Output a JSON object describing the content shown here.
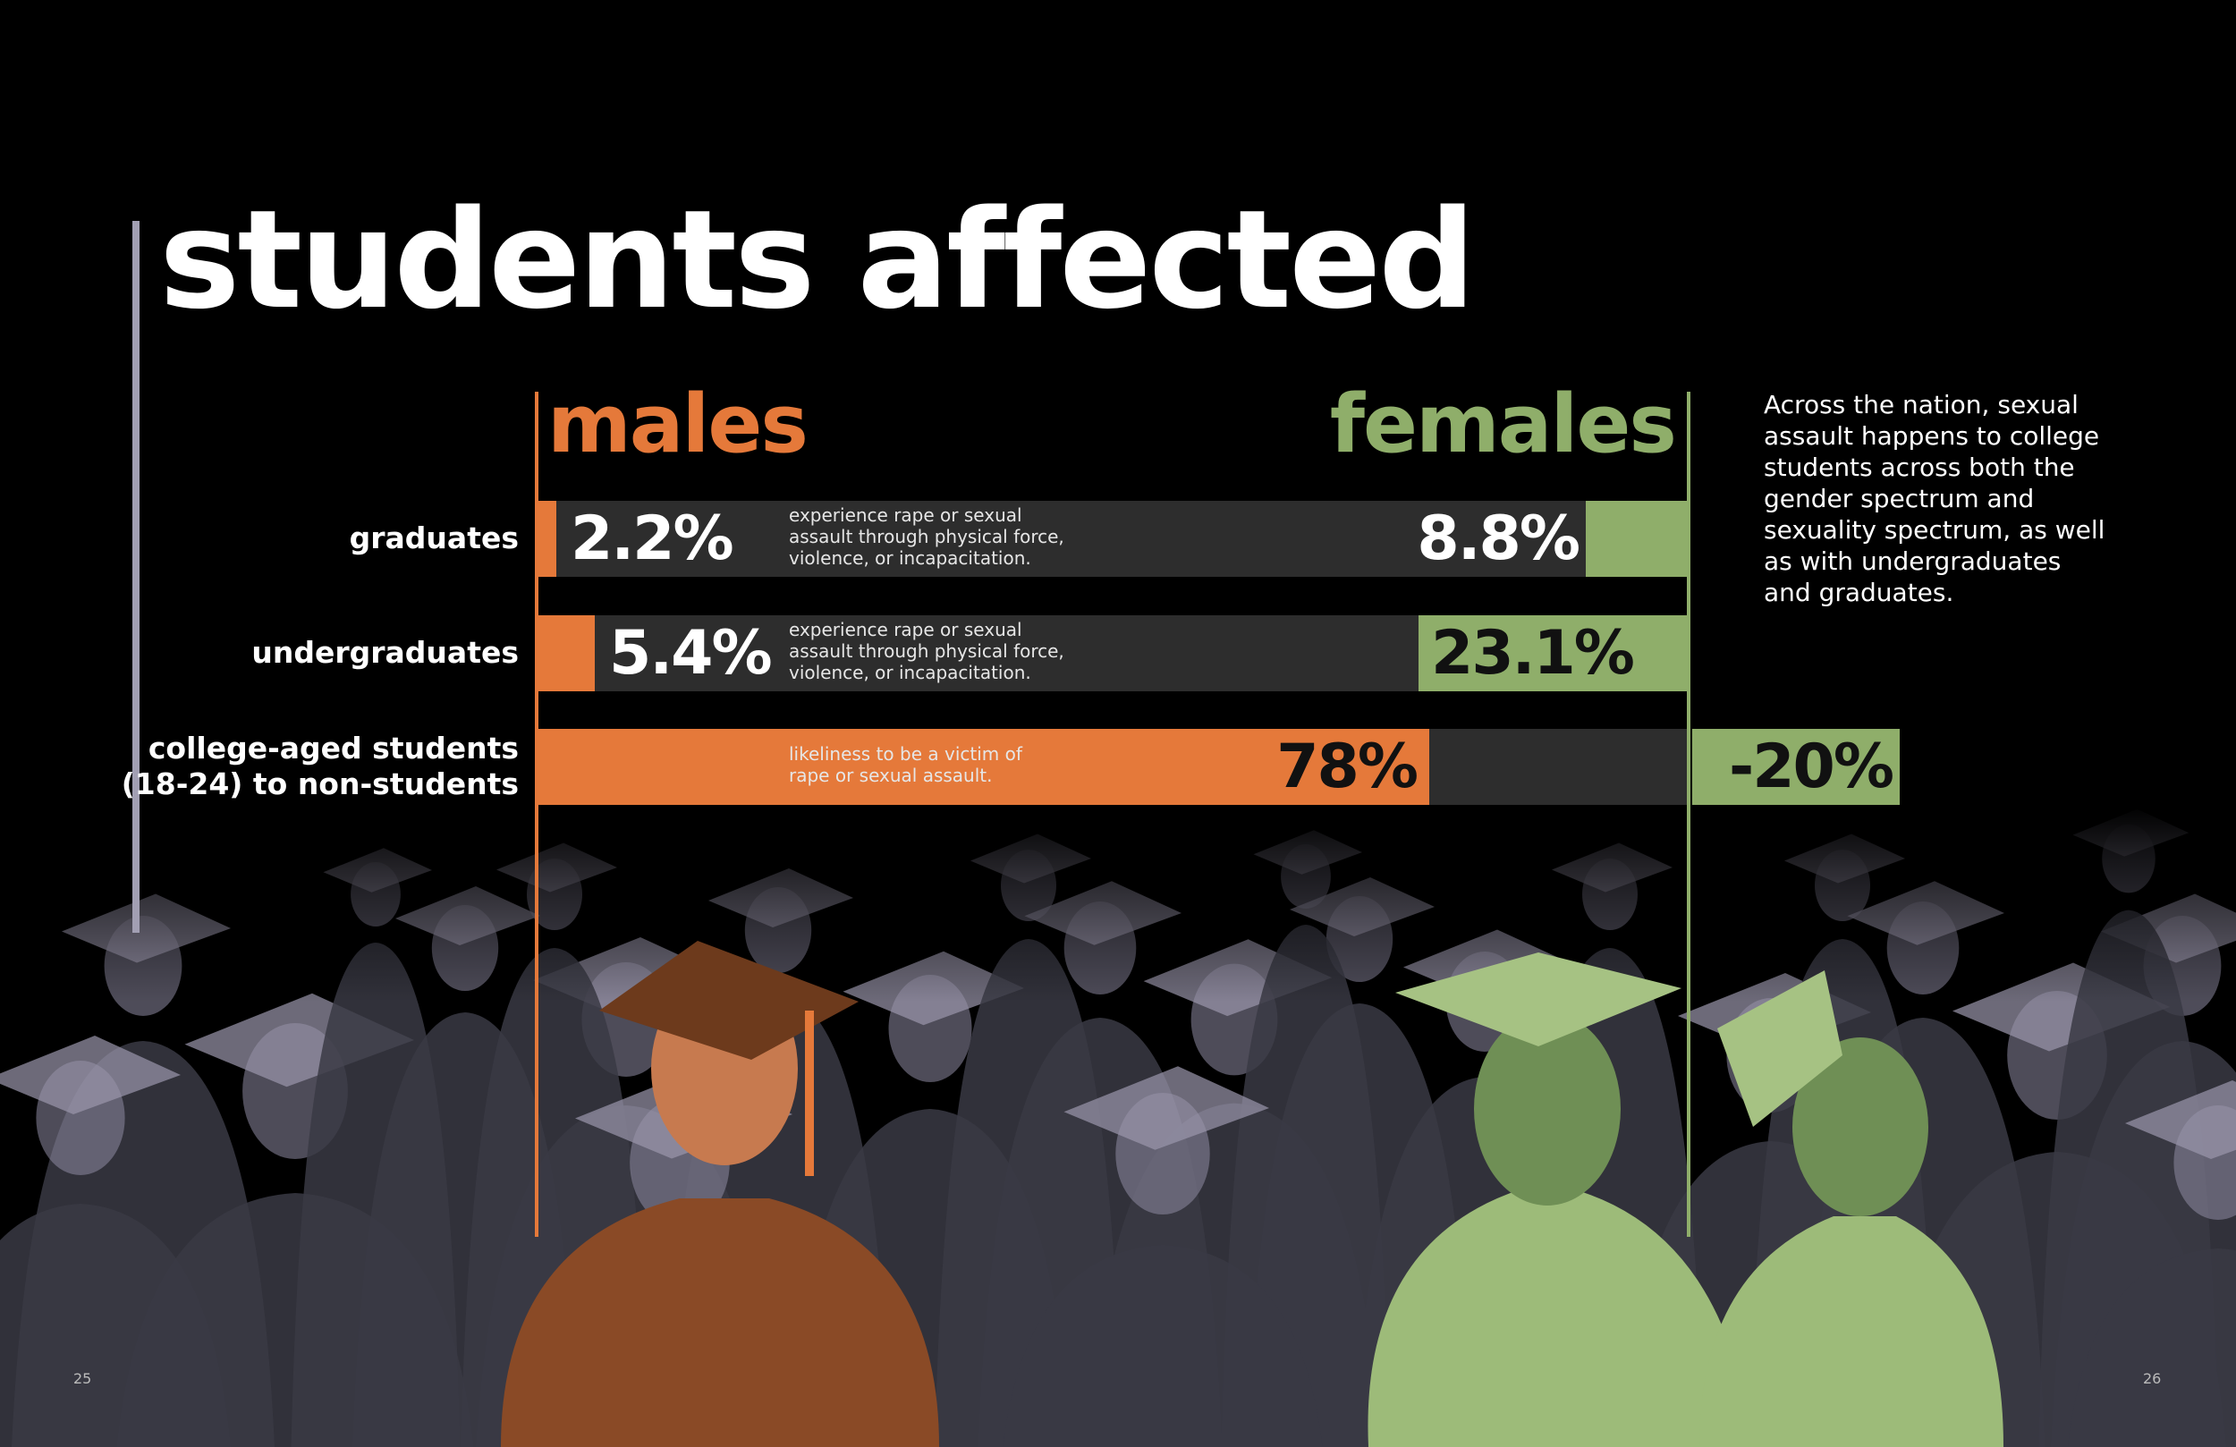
{
  "page": {
    "title": "students affected"
  },
  "colors": {
    "males": "#e5793a",
    "females": "#8fae6a",
    "track": "#2d2d2d",
    "rule": "#a29fb3",
    "photo_tint": "#8e8aa3"
  },
  "intro_lines": [
    "Across the nation, sexual",
    "assault happens to college",
    "students across both the",
    "gender spectrum and",
    "sexuality spectrum, as well",
    "as with undergraduates",
    "and graduates."
  ],
  "page_numbers": {
    "left": "25",
    "right": "26"
  },
  "chart_data": {
    "type": "bar",
    "orientation": "horizontal-diverging",
    "title": "students affected",
    "legend": [
      "males",
      "females"
    ],
    "categories": [
      [
        "graduates"
      ],
      [
        "undergraduates"
      ],
      [
        "college-aged students",
        "(18-24) to non-students"
      ]
    ],
    "series": [
      {
        "name": "males",
        "values": [
          2.2,
          5.4,
          78
        ],
        "labels": [
          "2.2%",
          "5.4%",
          "78%"
        ]
      },
      {
        "name": "females",
        "values": [
          8.8,
          23.1,
          -20
        ],
        "labels": [
          "8.8%",
          "23.1%",
          "-20%"
        ]
      }
    ],
    "descriptions": [
      [
        "experience rape or sexual",
        "assault through physical force,",
        "violence, or incapacitation."
      ],
      [
        "experience rape or sexual",
        "assault through physical force,",
        "violence, or incapacitation."
      ],
      [
        "likeliness to be a victim of",
        "rape or sexual assault."
      ]
    ],
    "unit": "%"
  }
}
